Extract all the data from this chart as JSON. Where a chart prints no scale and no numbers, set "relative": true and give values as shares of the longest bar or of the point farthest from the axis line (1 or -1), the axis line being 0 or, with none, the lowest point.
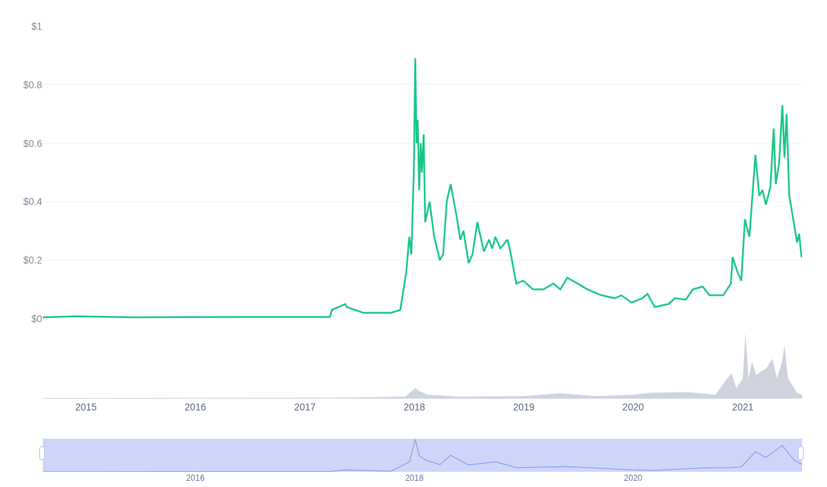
{
  "chart_data": [
    {
      "type": "line",
      "color": "#16c784",
      "grid": "y",
      "tick_labels": "y",
      "xlim": [
        "2014-08-10",
        "2021-07-18"
      ],
      "ylim": [
        0,
        1
      ],
      "yticks": [
        {
          "value": 0,
          "label": "$0"
        },
        {
          "value": 0.2,
          "label": "$0.2"
        },
        {
          "value": 0.4,
          "label": "$0.4"
        },
        {
          "value": 0.6,
          "label": "$0.6"
        },
        {
          "value": 0.8,
          "label": "$0.8"
        },
        {
          "value": 1,
          "label": "$1"
        }
      ],
      "x": [
        "2014-08-10",
        "2014-12-01",
        "2015-06-01",
        "2016-06-01",
        "2017-03-25",
        "2017-04-01",
        "2017-05-15",
        "2017-05-20",
        "2017-07-15",
        "2017-09-01",
        "2017-10-15",
        "2017-11-15",
        "2017-12-05",
        "2017-12-15",
        "2017-12-22",
        "2017-12-30",
        "2018-01-04",
        "2018-01-08",
        "2018-01-12",
        "2018-01-17",
        "2018-01-22",
        "2018-01-26",
        "2018-02-01",
        "2018-02-06",
        "2018-02-21",
        "2018-03-08",
        "2018-03-27",
        "2018-04-07",
        "2018-04-19",
        "2018-05-02",
        "2018-05-22",
        "2018-06-03",
        "2018-06-14",
        "2018-07-01",
        "2018-07-14",
        "2018-07-30",
        "2018-08-21",
        "2018-09-07",
        "2018-09-18",
        "2018-09-28",
        "2018-10-15",
        "2018-11-08",
        "2018-11-19",
        "2018-12-07",
        "2018-12-30",
        "2019-02-01",
        "2019-03-07",
        "2019-04-10",
        "2019-05-03",
        "2019-05-26",
        "2019-06-30",
        "2019-08-02",
        "2019-09-17",
        "2019-11-01",
        "2019-11-23",
        "2019-12-27",
        "2020-02-01",
        "2020-02-18",
        "2020-03-13",
        "2020-04-28",
        "2020-05-20",
        "2020-06-25",
        "2020-07-18",
        "2020-08-20",
        "2020-09-12",
        "2020-10-28",
        "2020-11-22",
        "2020-11-28",
        "2020-12-14",
        "2020-12-27",
        "2021-01-08",
        "2021-01-23",
        "2021-02-12",
        "2021-02-25",
        "2021-03-08",
        "2021-03-19",
        "2021-04-03",
        "2021-04-14",
        "2021-04-21",
        "2021-05-02",
        "2021-05-13",
        "2021-05-20",
        "2021-05-27",
        "2021-06-05",
        "2021-06-20",
        "2021-07-01",
        "2021-07-08",
        "2021-07-16"
      ],
      "values": [
        0.005,
        0.008,
        0.005,
        0.006,
        0.006,
        0.03,
        0.05,
        0.04,
        0.02,
        0.02,
        0.02,
        0.03,
        0.16,
        0.28,
        0.22,
        0.5,
        0.89,
        0.6,
        0.68,
        0.44,
        0.6,
        0.5,
        0.63,
        0.33,
        0.4,
        0.28,
        0.2,
        0.22,
        0.4,
        0.46,
        0.35,
        0.27,
        0.3,
        0.19,
        0.22,
        0.33,
        0.23,
        0.27,
        0.24,
        0.28,
        0.24,
        0.27,
        0.22,
        0.12,
        0.13,
        0.1,
        0.1,
        0.12,
        0.1,
        0.14,
        0.12,
        0.1,
        0.08,
        0.07,
        0.08,
        0.055,
        0.07,
        0.085,
        0.04,
        0.05,
        0.07,
        0.065,
        0.1,
        0.11,
        0.08,
        0.08,
        0.12,
        0.21,
        0.16,
        0.13,
        0.34,
        0.28,
        0.56,
        0.42,
        0.44,
        0.39,
        0.45,
        0.65,
        0.46,
        0.53,
        0.73,
        0.55,
        0.7,
        0.42,
        0.33,
        0.26,
        0.29,
        0.21
      ]
    },
    {
      "type": "area",
      "relative": true,
      "color": "#cfd3de",
      "tick_labels": "x",
      "xlim": [
        "2014-08-10",
        "2021-07-18"
      ],
      "xticks": [
        {
          "value": "2015-01-01",
          "label": "2015"
        },
        {
          "value": "2016-01-01",
          "label": "2016"
        },
        {
          "value": "2017-01-01",
          "label": "2017"
        },
        {
          "value": "2018-01-01",
          "label": "2018"
        },
        {
          "value": "2019-01-01",
          "label": "2019"
        },
        {
          "value": "2020-01-01",
          "label": "2020"
        },
        {
          "value": "2021-01-01",
          "label": "2021"
        }
      ],
      "x": [
        "2014-08-10",
        "2017-04-01",
        "2017-12-01",
        "2018-01-04",
        "2018-01-20",
        "2018-02-15",
        "2018-06-01",
        "2019-01-01",
        "2019-05-01",
        "2019-09-01",
        "2020-01-01",
        "2020-03-01",
        "2020-07-01",
        "2020-10-01",
        "2020-11-24",
        "2020-12-10",
        "2021-01-01",
        "2021-01-10",
        "2021-01-20",
        "2021-02-01",
        "2021-02-15",
        "2021-03-01",
        "2021-03-20",
        "2021-04-10",
        "2021-04-25",
        "2021-05-12",
        "2021-05-20",
        "2021-06-01",
        "2021-07-01",
        "2021-07-18"
      ],
      "values": [
        0,
        0.005,
        0.02,
        0.15,
        0.1,
        0.05,
        0.02,
        0.03,
        0.07,
        0.03,
        0.05,
        0.08,
        0.09,
        0.05,
        0.38,
        0.15,
        0.3,
        1,
        0.3,
        0.55,
        0.35,
        0.4,
        0.45,
        0.6,
        0.3,
        0.55,
        0.8,
        0.3,
        0.08,
        0.05
      ]
    },
    {
      "type": "line",
      "relative": true,
      "color": "#8f9ae6",
      "grid": "x",
      "tick_labels": "x",
      "xlim": [
        "2014-08-10",
        "2021-07-18"
      ],
      "xticks": [
        {
          "value": "2016-01-01",
          "label": "2016"
        },
        {
          "value": "2018-01-01",
          "label": "2018"
        },
        {
          "value": "2020-01-01",
          "label": "2020"
        }
      ],
      "x": [
        "2014-08-10",
        "2017-03-25",
        "2017-05-15",
        "2017-10-15",
        "2017-12-15",
        "2018-01-04",
        "2018-01-17",
        "2018-02-06",
        "2018-03-27",
        "2018-05-02",
        "2018-07-01",
        "2018-09-28",
        "2018-12-07",
        "2019-05-26",
        "2019-12-27",
        "2020-03-13",
        "2020-08-20",
        "2020-11-22",
        "2020-12-27",
        "2021-02-12",
        "2021-03-19",
        "2021-05-13",
        "2021-06-20",
        "2021-07-18"
      ],
      "values": [
        0.005,
        0.007,
        0.06,
        0.02,
        0.3,
        1,
        0.5,
        0.37,
        0.22,
        0.51,
        0.21,
        0.31,
        0.13,
        0.16,
        0.06,
        0.045,
        0.12,
        0.13,
        0.15,
        0.62,
        0.44,
        0.81,
        0.37,
        0.23
      ]
    }
  ]
}
